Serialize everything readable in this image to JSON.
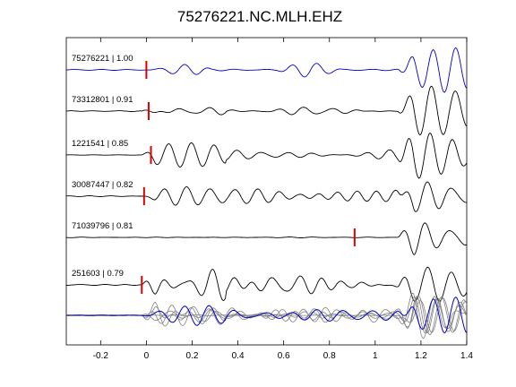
{
  "chart_data": {
    "type": "line",
    "title": "75276221.NC.MLH.EHZ",
    "xlabel": "",
    "ylabel": "",
    "xlim": [
      -0.35,
      1.4
    ],
    "xticks": [
      "-0.2",
      "0",
      "0.2",
      "0.4",
      "0.6",
      "0.8",
      "1",
      "1.2",
      "1.4"
    ],
    "xtick_values": [
      -0.2,
      0,
      0.2,
      0.4,
      0.6,
      0.8,
      1.0,
      1.2,
      1.4
    ],
    "grid": false,
    "colors": {
      "reference": "#0000cc",
      "trace": "#000000",
      "pick": "#dd0000",
      "stack": "#808080"
    },
    "series": [
      {
        "label": "75276221 | 1.00",
        "pick_time": 0.0,
        "reference": true
      },
      {
        "label": "73312801 | 0.91",
        "pick_time": 0.01
      },
      {
        "label": "1221541 | 0.85",
        "pick_time": 0.02
      },
      {
        "label": "30087447 | 0.82",
        "pick_time": -0.01
      },
      {
        "label": "71039796 | 0.81",
        "pick_time": 0.91
      },
      {
        "label": "251603 | 0.79",
        "pick_time": -0.02
      }
    ],
    "overlay": {
      "description": ""
    }
  }
}
